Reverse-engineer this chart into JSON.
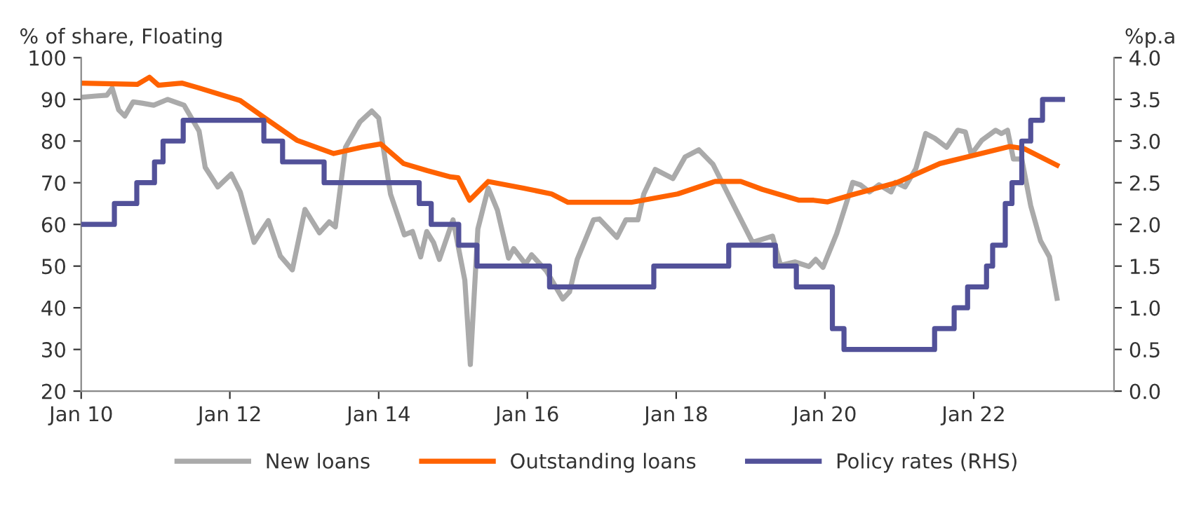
{
  "chart_data": {
    "type": "line",
    "ylabel": "% of share, Floating",
    "y2label": "%p.a",
    "xlim": [
      "2010-01-01",
      "2023-11-21"
    ],
    "xticks": [
      {
        "value": "2010-01-01",
        "label": "Jan 10"
      },
      {
        "value": "2012-01-01",
        "label": "Jan 12"
      },
      {
        "value": "2014-01-01",
        "label": "Jan 14"
      },
      {
        "value": "2016-01-01",
        "label": "Jan 16"
      },
      {
        "value": "2018-01-01",
        "label": "Jan 18"
      },
      {
        "value": "2020-01-01",
        "label": "Jan 20"
      },
      {
        "value": "2022-01-01",
        "label": "Jan 22"
      }
    ],
    "ylim": [
      20,
      100
    ],
    "yticks": [
      20,
      30,
      40,
      50,
      60,
      70,
      80,
      90,
      100
    ],
    "y2lim": [
      0,
      4
    ],
    "y2ticks": [
      {
        "value": 0,
        "label": "0.0"
      },
      {
        "value": 0.5,
        "label": "0.5"
      },
      {
        "value": 1,
        "label": "1.0"
      },
      {
        "value": 1.5,
        "label": "1.5"
      },
      {
        "value": 2,
        "label": "2.0"
      },
      {
        "value": 2.5,
        "label": "2.5"
      },
      {
        "value": 3,
        "label": "3.0"
      },
      {
        "value": 3.5,
        "label": "3.5"
      },
      {
        "value": 4,
        "label": "4.0"
      }
    ],
    "grid": false,
    "legend": "bottom",
    "series": [
      {
        "name": "New loans",
        "color": "#aaaaaa",
        "x": [
          "2010-01-01",
          "2010-03-13",
          "2010-05-07",
          "2010-06-02",
          "2010-07-04",
          "2010-08-03",
          "2010-09-13",
          "2010-10-26",
          "2010-12-23",
          "2011-03-02",
          "2011-05-21",
          "2011-08-03",
          "2011-09-02",
          "2011-11-03",
          "2012-01-08",
          "2012-02-21",
          "2012-04-29",
          "2012-07-08",
          "2012-09-05",
          "2012-11-03",
          "2013-01-04",
          "2013-03-16",
          "2013-05-03",
          "2013-06-02",
          "2013-07-22",
          "2013-10-01",
          "2013-11-28",
          "2014-01-01",
          "2014-02-28",
          "2014-05-07",
          "2014-06-16",
          "2014-07-26",
          "2014-08-25",
          "2014-09-27",
          "2014-10-26",
          "2015-01-01",
          "2015-02-28",
          "2015-03-27",
          "2015-05-03",
          "2015-06-23",
          "2015-08-07",
          "2015-10-01",
          "2015-10-26",
          "2015-12-23",
          "2016-01-22",
          "2016-04-04",
          "2016-06-23",
          "2016-07-26",
          "2016-09-02",
          "2016-11-21",
          "2016-12-20",
          "2017-03-16",
          "2017-04-29",
          "2017-06-27",
          "2017-07-26",
          "2017-09-20",
          "2017-12-16",
          "2018-02-14",
          "2018-04-22",
          "2018-07-01",
          "2018-10-11",
          "2019-01-11",
          "2019-04-19",
          "2019-05-28",
          "2019-08-07",
          "2019-10-15",
          "2019-11-17",
          "2019-12-23",
          "2020-02-28",
          "2020-04-15",
          "2020-05-17",
          "2020-06-23",
          "2020-08-07",
          "2020-09-23",
          "2020-11-21",
          "2020-12-13",
          "2021-01-29",
          "2021-03-23",
          "2021-05-10",
          "2021-06-23",
          "2021-08-21",
          "2021-10-15",
          "2021-11-21",
          "2021-12-20",
          "2022-02-10",
          "2022-04-19",
          "2022-05-17",
          "2022-06-16",
          "2022-07-15",
          "2022-08-25",
          "2022-10-08",
          "2022-11-25",
          "2023-01-08",
          "2023-02-14"
        ],
        "values": [
          90.5,
          90.8,
          91.0,
          92.7,
          87.5,
          86.0,
          89.4,
          89.1,
          88.6,
          90.0,
          88.6,
          82.4,
          73.7,
          69.0,
          72.1,
          67.8,
          55.7,
          60.9,
          52.4,
          49.1,
          63.6,
          58.0,
          60.6,
          59.4,
          78.5,
          84.6,
          87.2,
          85.5,
          67.3,
          57.5,
          58.3,
          52.2,
          58.3,
          55.7,
          51.6,
          61.1,
          46.6,
          26.4,
          58.9,
          68.7,
          63.4,
          51.9,
          54.2,
          50.5,
          52.7,
          48.8,
          42.1,
          43.8,
          51.6,
          61.1,
          61.3,
          56.9,
          61.1,
          61.1,
          67.3,
          73.2,
          71.0,
          76.2,
          77.9,
          74.4,
          64.5,
          55.7,
          57.2,
          50.2,
          51.0,
          49.9,
          51.6,
          49.7,
          57.8,
          65.0,
          70.1,
          69.5,
          67.8,
          69.5,
          67.8,
          70.1,
          69.0,
          73.4,
          81.8,
          80.7,
          78.5,
          82.6,
          82.2,
          76.8,
          80.2,
          82.6,
          81.8,
          82.6,
          75.7,
          75.7,
          64.5,
          56.1,
          52.2,
          42.3
        ]
      },
      {
        "name": "Outstanding loans",
        "color": "#ff6200",
        "x": [
          "2010-01-01",
          "2010-10-04",
          "2010-12-02",
          "2011-01-15",
          "2011-05-10",
          "2011-07-29",
          "2012-02-21",
          "2012-06-13",
          "2012-11-25",
          "2013-05-25",
          "2013-10-08",
          "2014-01-11",
          "2014-05-03",
          "2014-08-28",
          "2014-12-20",
          "2015-01-26",
          "2015-03-23",
          "2015-06-23",
          "2015-12-13",
          "2016-04-29",
          "2016-07-19",
          "2017-05-25",
          "2018-01-08",
          "2018-07-11",
          "2018-11-14",
          "2019-02-28",
          "2019-08-28",
          "2019-11-07",
          "2020-01-15",
          "2020-05-07",
          "2020-12-23",
          "2021-07-19",
          "2021-12-27",
          "2022-06-27",
          "2022-09-05",
          "2023-02-14"
        ],
        "values": [
          93.9,
          93.6,
          95.3,
          93.4,
          93.9,
          92.8,
          89.7,
          85.8,
          80.2,
          77.0,
          78.5,
          79.3,
          74.6,
          72.9,
          71.4,
          71.2,
          65.8,
          70.3,
          68.7,
          67.3,
          65.3,
          65.3,
          67.3,
          70.3,
          70.3,
          68.4,
          65.8,
          65.8,
          65.4,
          67.0,
          70.1,
          74.6,
          76.5,
          78.7,
          78.2,
          74.2
        ]
      },
      {
        "name": "Policy rates (RHS)",
        "color": "#525199",
        "type": "step",
        "axis": "y2",
        "x": [
          "2010-01-01",
          "2010-06-13",
          "2010-10-01",
          "2010-12-27",
          "2011-02-07",
          "2011-05-17",
          "2012-06-16",
          "2012-09-16",
          "2013-04-08",
          "2014-07-19",
          "2014-09-16",
          "2015-01-29",
          "2015-04-29",
          "2016-04-19",
          "2017-09-13",
          "2018-09-16",
          "2019-05-03",
          "2019-08-14",
          "2020-02-07",
          "2020-04-04",
          "2021-06-23",
          "2021-09-27",
          "2021-12-02",
          "2022-03-05",
          "2022-04-04",
          "2022-06-05",
          "2022-07-08",
          "2022-08-25",
          "2022-10-08",
          "2022-12-05",
          "2023-03-13"
        ],
        "values": [
          2.0,
          2.25,
          2.5,
          2.75,
          3.0,
          3.25,
          3.0,
          2.75,
          2.5,
          2.25,
          2.0,
          1.75,
          1.5,
          1.25,
          1.5,
          1.75,
          1.5,
          1.25,
          0.75,
          0.5,
          0.75,
          1.0,
          1.25,
          1.5,
          1.75,
          2.25,
          2.5,
          3.0,
          3.25,
          3.5,
          3.5
        ]
      }
    ]
  }
}
